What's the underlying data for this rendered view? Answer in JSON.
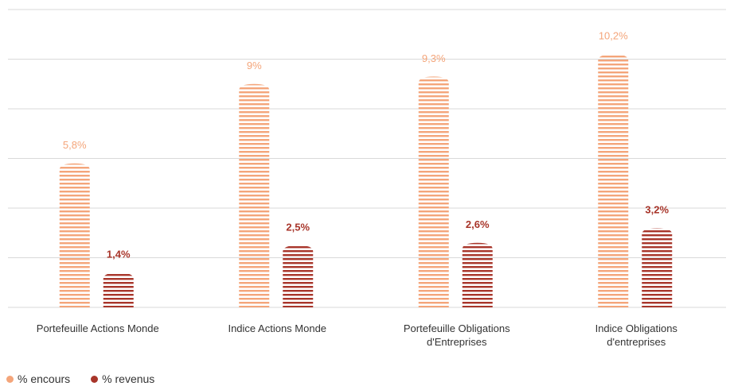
{
  "chart_data": {
    "type": "bar",
    "categories": [
      "Portefeuille Actions Monde",
      "Indice Actions Monde",
      "Portefeuille Obligations d'Entreprises",
      "Indice Obligations d'entreprises"
    ],
    "series": [
      {
        "name": "% encours",
        "color": "#f4a57a",
        "values": [
          5.8,
          9,
          9.3,
          10.2
        ],
        "value_labels": [
          "5,8%",
          "9%",
          "9,3%",
          "10,2%"
        ]
      },
      {
        "name": "% revenus",
        "color": "#a8352a",
        "values": [
          1.4,
          2.5,
          2.6,
          3.2
        ],
        "value_labels": [
          "1,4%",
          "2,5%",
          "2,6%",
          "3,2%"
        ]
      }
    ],
    "ylim": [
      0,
      12
    ],
    "yticks": [
      0,
      2,
      4,
      6,
      8,
      10,
      12
    ],
    "grid": true
  }
}
